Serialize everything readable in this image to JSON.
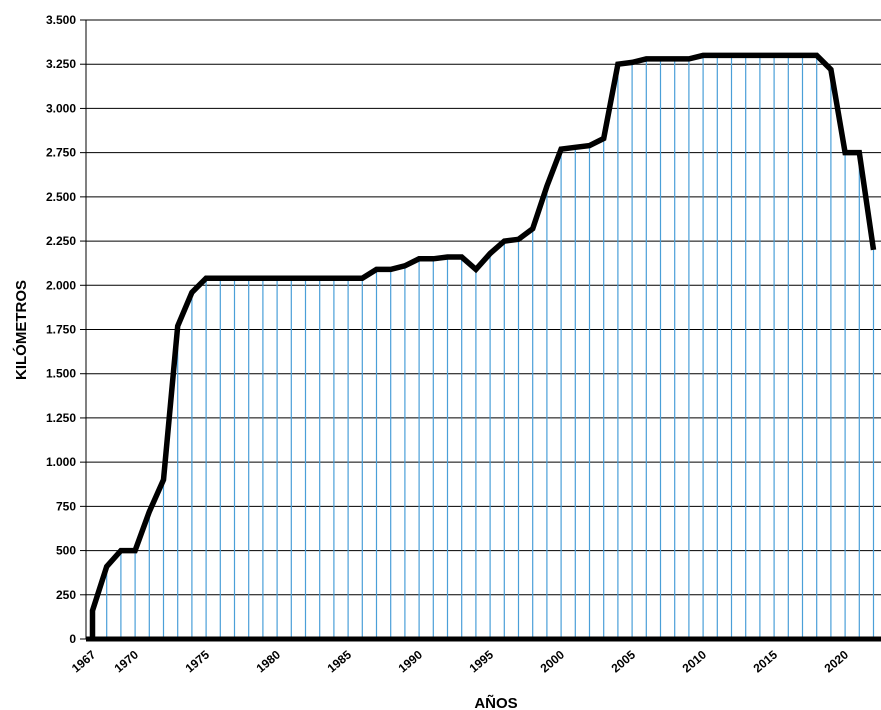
{
  "chart_data": {
    "type": "area",
    "xlabel": "AÑOS",
    "ylabel": "KILÓMETROS",
    "xlim": [
      1967,
      2022
    ],
    "ylim": [
      0,
      3500
    ],
    "grid": "horizontal",
    "yticks": [
      {
        "value": 0,
        "label": "0"
      },
      {
        "value": 250,
        "label": "250"
      },
      {
        "value": 500,
        "label": "500"
      },
      {
        "value": 750,
        "label": "750"
      },
      {
        "value": 1000,
        "label": "1.000"
      },
      {
        "value": 1250,
        "label": "1.250"
      },
      {
        "value": 1500,
        "label": "1.500"
      },
      {
        "value": 1750,
        "label": "1.750"
      },
      {
        "value": 2000,
        "label": "2.000"
      },
      {
        "value": 2250,
        "label": "2.250"
      },
      {
        "value": 2500,
        "label": "2.500"
      },
      {
        "value": 2750,
        "label": "2.750"
      },
      {
        "value": 3000,
        "label": "3.000"
      },
      {
        "value": 3250,
        "label": "3.250"
      },
      {
        "value": 3500,
        "label": "3.500"
      }
    ],
    "xticks": [
      {
        "value": 1967,
        "label": "1967"
      },
      {
        "value": 1970,
        "label": "1970"
      },
      {
        "value": 1975,
        "label": "1975"
      },
      {
        "value": 1980,
        "label": "1980"
      },
      {
        "value": 1985,
        "label": "1985"
      },
      {
        "value": 1990,
        "label": "1990"
      },
      {
        "value": 1995,
        "label": "1995"
      },
      {
        "value": 2000,
        "label": "2000"
      },
      {
        "value": 2005,
        "label": "2005"
      },
      {
        "value": 2010,
        "label": "2010"
      },
      {
        "value": 2015,
        "label": "2015"
      },
      {
        "value": 2020,
        "label": "2020"
      }
    ],
    "colors": {
      "fill_lines": "#4a9fd8",
      "line": "#000000",
      "grid": "#000000"
    },
    "x": [
      1967,
      1968,
      1969,
      1970,
      1971,
      1972,
      1973,
      1974,
      1975,
      1976,
      1977,
      1978,
      1979,
      1980,
      1981,
      1982,
      1983,
      1984,
      1985,
      1986,
      1987,
      1988,
      1989,
      1990,
      1991,
      1992,
      1993,
      1994,
      1995,
      1996,
      1997,
      1998,
      1999,
      2000,
      2001,
      2002,
      2003,
      2004,
      2005,
      2006,
      2007,
      2008,
      2009,
      2010,
      2011,
      2012,
      2013,
      2014,
      2015,
      2016,
      2017,
      2018,
      2019,
      2020,
      2021,
      2022
    ],
    "values": [
      160,
      410,
      500,
      500,
      720,
      900,
      1770,
      1960,
      2040,
      2040,
      2040,
      2040,
      2040,
      2040,
      2040,
      2040,
      2040,
      2040,
      2040,
      2040,
      2090,
      2090,
      2110,
      2150,
      2150,
      2160,
      2160,
      2090,
      2180,
      2250,
      2260,
      2320,
      2560,
      2770,
      2780,
      2790,
      2830,
      3250,
      3260,
      3280,
      3280,
      3280,
      3280,
      3300,
      3300,
      3300,
      3300,
      3300,
      3300,
      3300,
      3300,
      3300,
      3220,
      2750,
      2750,
      2200
    ]
  }
}
